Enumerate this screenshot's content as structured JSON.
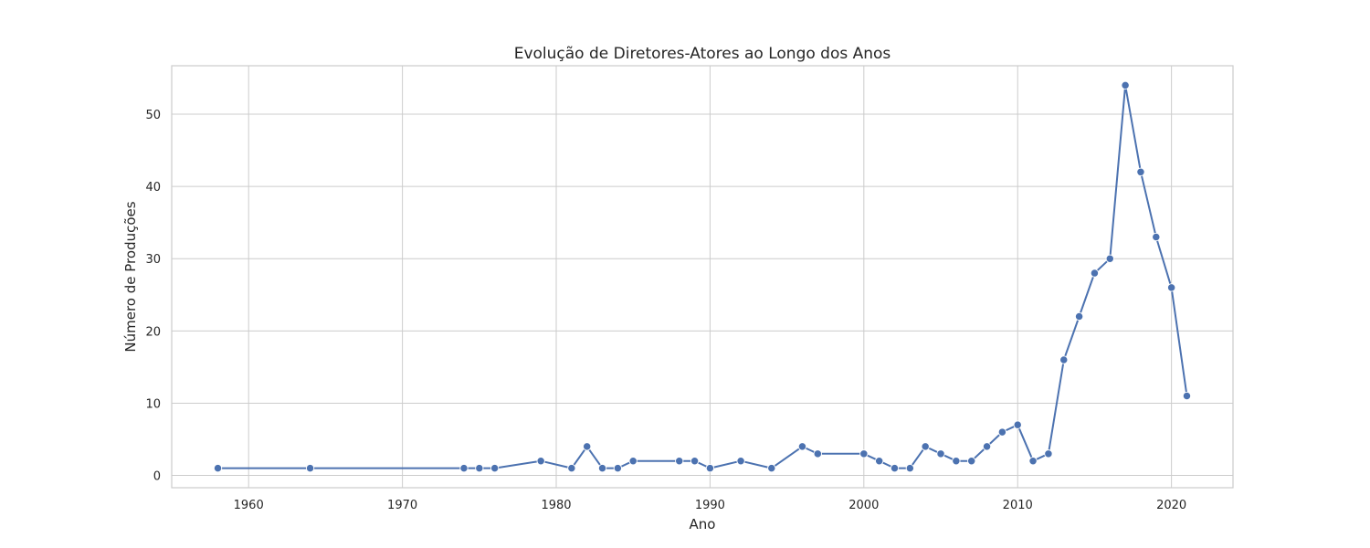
{
  "chart_data": {
    "type": "line",
    "title": "Evolução de Diretores-Atores ao Longo dos Anos",
    "xlabel": "Ano",
    "ylabel": "Número de Produções",
    "xlim": [
      1955,
      2024
    ],
    "ylim": [
      -1.7,
      56.7
    ],
    "xticks": [
      1960,
      1970,
      1980,
      1990,
      2000,
      2010,
      2020
    ],
    "yticks": [
      0,
      10,
      20,
      30,
      40,
      50
    ],
    "grid": true,
    "line_color": "#4c72b0",
    "series": [
      {
        "x": [
          1958,
          1964,
          1974,
          1975,
          1976,
          1979,
          1981,
          1982,
          1983,
          1984,
          1985,
          1988,
          1989,
          1990,
          1992,
          1994,
          1996,
          1997,
          2000,
          2001,
          2002,
          2003,
          2004,
          2005,
          2006,
          2007,
          2008,
          2009,
          2010,
          2011,
          2012,
          2013,
          2014,
          2015,
          2016,
          2017,
          2018,
          2019,
          2020,
          2021
        ],
        "y": [
          1,
          1,
          1,
          1,
          1,
          2,
          1,
          4,
          1,
          1,
          2,
          2,
          2,
          1,
          2,
          1,
          4,
          3,
          3,
          2,
          1,
          1,
          4,
          3,
          2,
          2,
          4,
          6,
          7,
          2,
          3,
          16,
          22,
          28,
          30,
          54,
          42,
          33,
          26,
          11
        ]
      }
    ]
  }
}
